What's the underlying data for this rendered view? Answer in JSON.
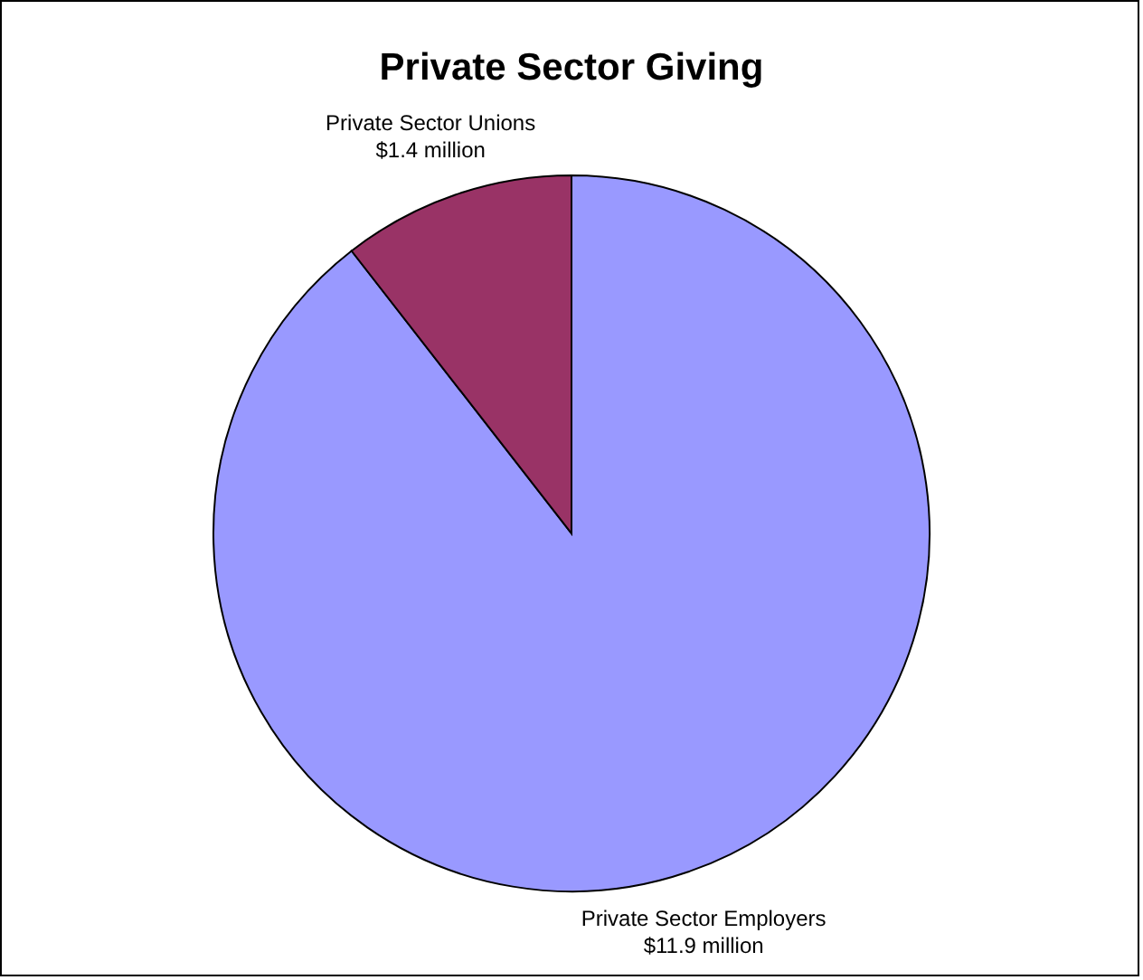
{
  "chart_data": {
    "type": "pie",
    "title": "Private Sector Giving",
    "categories": [
      "Private Sector Employers",
      "Private Sector Unions"
    ],
    "values": [
      11.9,
      1.4
    ],
    "value_labels": [
      "$11.9 million",
      "$1.4 million"
    ],
    "colors": [
      "#9999ff",
      "#993366"
    ]
  }
}
